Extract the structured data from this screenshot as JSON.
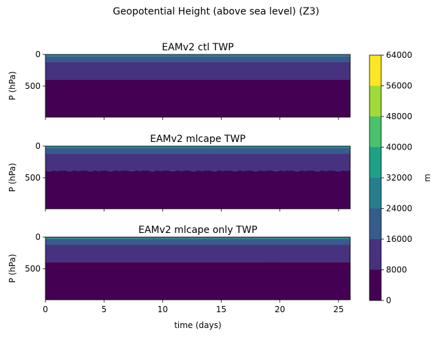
{
  "chart_data": {
    "type": "heatmap",
    "title": "Geopotential Height (above sea level) (Z3)",
    "xlabel": "time (days)",
    "xlim": [
      0,
      26
    ],
    "x_ticks": [
      0,
      5,
      10,
      15,
      20,
      25
    ],
    "ylim": [
      990,
      0
    ],
    "y_ticks": [
      0,
      500
    ],
    "panels": [
      {
        "title": "EAMv2 ctl TWP",
        "ylabel": "P (hPa)",
        "bands_hPa": [
          {
            "from": 0,
            "to": 30,
            "level_index": 3
          },
          {
            "from": 30,
            "to": 120,
            "level_index": 2
          },
          {
            "from": 120,
            "to": 395,
            "level_index": 1
          },
          {
            "from": 395,
            "to": 990,
            "level_index": 0
          }
        ]
      },
      {
        "title": "EAMv2 mlcape TWP",
        "ylabel": "P (hPa)",
        "bands_hPa": [
          {
            "from": 0,
            "to": 30,
            "level_index": 3
          },
          {
            "from": 30,
            "to": 120,
            "level_index": 2
          },
          {
            "from": 120,
            "to": 385,
            "level_index": 1
          },
          {
            "from": 385,
            "to": 990,
            "level_index": 0
          }
        ]
      },
      {
        "title": "EAMv2 mlcape only TWP",
        "ylabel": "P (hPa)",
        "bands_hPa": [
          {
            "from": 0,
            "to": 30,
            "level_index": 3
          },
          {
            "from": 30,
            "to": 120,
            "level_index": 2
          },
          {
            "from": 120,
            "to": 395,
            "level_index": 1
          },
          {
            "from": 395,
            "to": 990,
            "level_index": 0
          }
        ]
      }
    ],
    "colorbar": {
      "label": "m",
      "levels": [
        0,
        8000,
        16000,
        24000,
        32000,
        40000,
        48000,
        56000,
        64000
      ],
      "tick_labels": [
        "0",
        "8000",
        "16000",
        "24000",
        "32000",
        "40000",
        "48000",
        "56000",
        "64000"
      ],
      "colors": [
        "#440154",
        "#46327e",
        "#365c8d",
        "#277f8e",
        "#1fa187",
        "#4ac16d",
        "#a0da39",
        "#fde725"
      ]
    }
  }
}
